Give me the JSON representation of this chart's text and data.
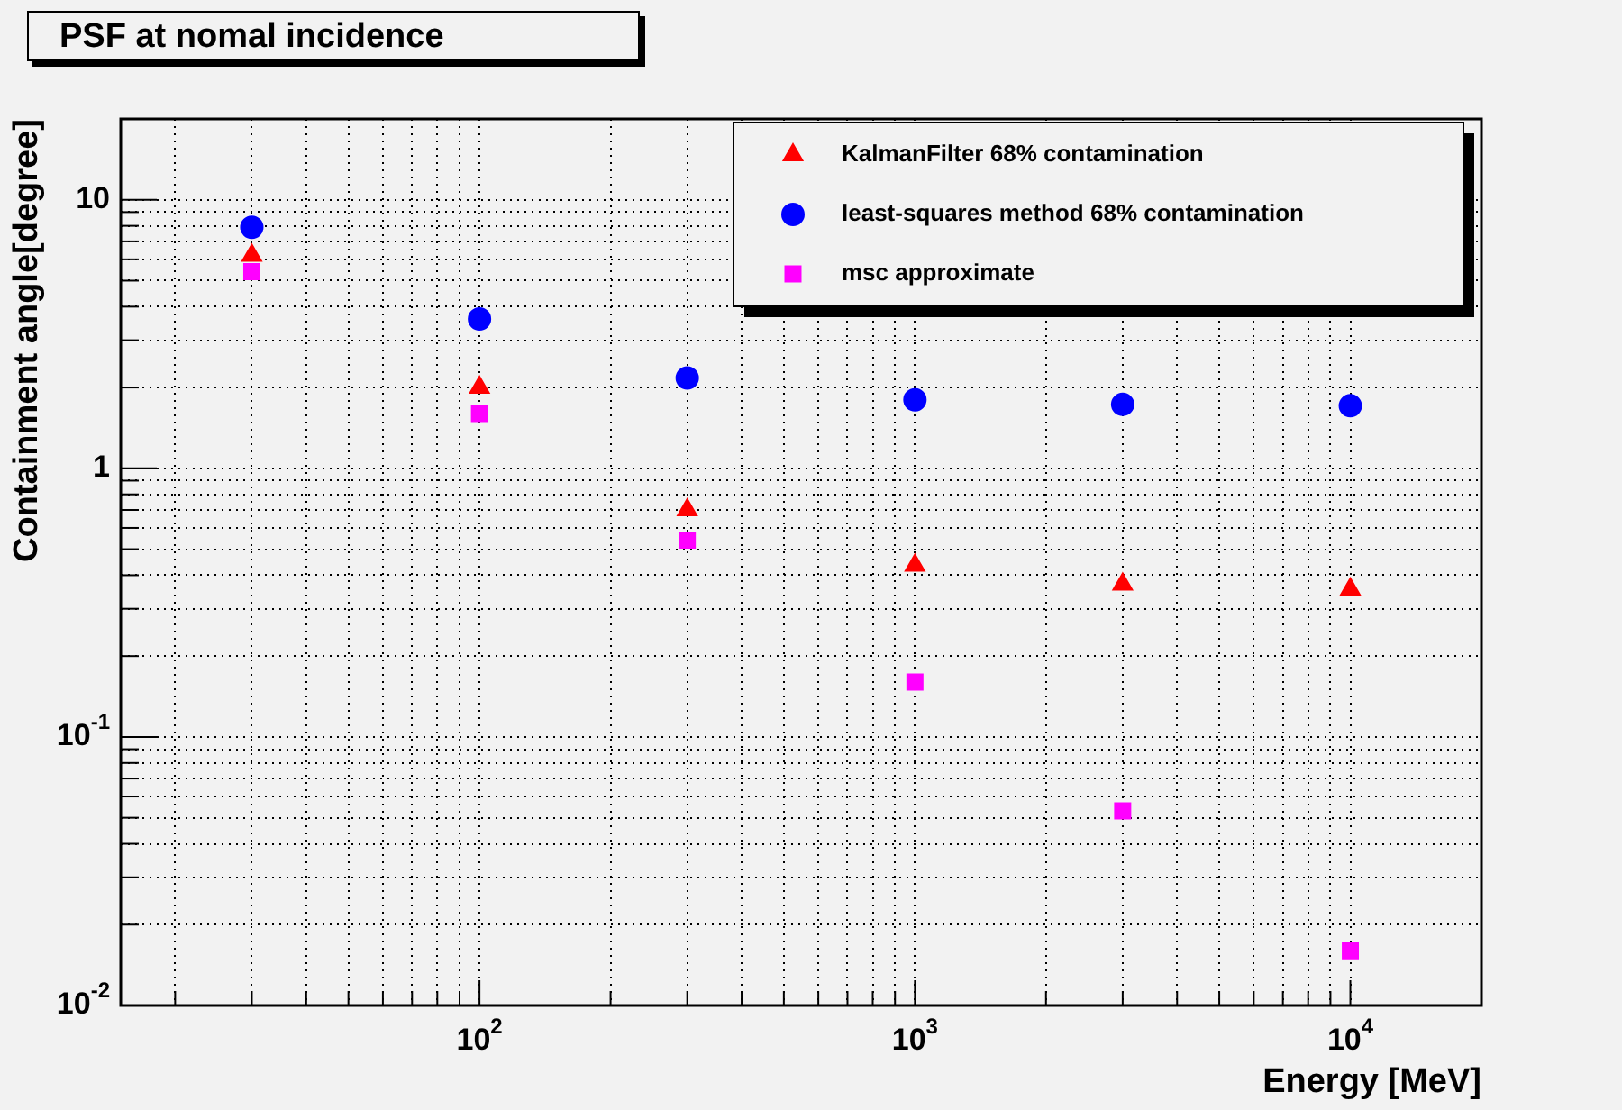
{
  "chart_data": {
    "type": "scatter",
    "title": "PSF at nomal incidence",
    "xlabel": "Energy [MeV]",
    "ylabel": "Containment angle[degree]",
    "log": "xy",
    "grid": true,
    "legend": "top right",
    "xlim": [
      15,
      20000
    ],
    "ylim": [
      0.01,
      20
    ],
    "xticks": [
      {
        "value": 20,
        "label": null
      },
      {
        "value": 30,
        "label": null
      },
      {
        "value": 40,
        "label": null
      },
      {
        "value": 50,
        "label": null
      },
      {
        "value": 60,
        "label": null
      },
      {
        "value": 70,
        "label": null
      },
      {
        "value": 80,
        "label": null
      },
      {
        "value": 90,
        "label": null
      },
      {
        "value": 100,
        "label": "10$^{2}$"
      },
      {
        "value": 200,
        "label": null
      },
      {
        "value": 300,
        "label": null
      },
      {
        "value": 400,
        "label": null
      },
      {
        "value": 500,
        "label": null
      },
      {
        "value": 600,
        "label": null
      },
      {
        "value": 700,
        "label": null
      },
      {
        "value": 800,
        "label": null
      },
      {
        "value": 900,
        "label": null
      },
      {
        "value": 1000,
        "label": "10$^{3}$"
      },
      {
        "value": 2000,
        "label": null
      },
      {
        "value": 3000,
        "label": null
      },
      {
        "value": 4000,
        "label": null
      },
      {
        "value": 5000,
        "label": null
      },
      {
        "value": 6000,
        "label": null
      },
      {
        "value": 7000,
        "label": null
      },
      {
        "value": 8000,
        "label": null
      },
      {
        "value": 9000,
        "label": null
      },
      {
        "value": 10000,
        "label": "10$^{4}$"
      },
      {
        "value": 20000,
        "label": null
      }
    ],
    "yticks": [
      {
        "value": 0.01,
        "label": "10$^{-2}$"
      },
      {
        "value": 0.02,
        "label": null
      },
      {
        "value": 0.03,
        "label": null
      },
      {
        "value": 0.04,
        "label": null
      },
      {
        "value": 0.05,
        "label": null
      },
      {
        "value": 0.06,
        "label": null
      },
      {
        "value": 0.07,
        "label": null
      },
      {
        "value": 0.08,
        "label": null
      },
      {
        "value": 0.09,
        "label": null
      },
      {
        "value": 0.1,
        "label": "10$^{-1}$"
      },
      {
        "value": 0.2,
        "label": null
      },
      {
        "value": 0.3,
        "label": null
      },
      {
        "value": 0.4,
        "label": null
      },
      {
        "value": 0.5,
        "label": null
      },
      {
        "value": 0.6,
        "label": null
      },
      {
        "value": 0.7,
        "label": null
      },
      {
        "value": 0.8,
        "label": null
      },
      {
        "value": 0.9,
        "label": null
      },
      1,
      {
        "value": 2,
        "label": null
      },
      {
        "value": 3,
        "label": null
      },
      {
        "value": 4,
        "label": null
      },
      {
        "value": 5,
        "label": null
      },
      {
        "value": 6,
        "label": null
      },
      {
        "value": 7,
        "label": null
      },
      {
        "value": 8,
        "label": null
      },
      {
        "value": 9,
        "label": null
      },
      10,
      {
        "value": 20,
        "label": null
      }
    ],
    "x": [
      30,
      100,
      300,
      1000,
      3000,
      10000
    ],
    "series": [
      {
        "name": "KalmanFilter 68% contamination",
        "color": "#ff0000",
        "marker": "triangle",
        "values": [
          6.2,
          2.0,
          0.7,
          0.435,
          0.37,
          0.355
        ]
      },
      {
        "name": "least-squares method 68% contamination",
        "color": "#0000ff",
        "marker": "circle",
        "values": [
          7.9,
          3.6,
          2.17,
          1.8,
          1.73,
          1.71
        ]
      },
      {
        "name": "msc approximate",
        "color": "#ff00ff",
        "marker": "square",
        "values": [
          5.4,
          1.6,
          0.54,
          0.16,
          0.053,
          0.016
        ]
      }
    ]
  }
}
